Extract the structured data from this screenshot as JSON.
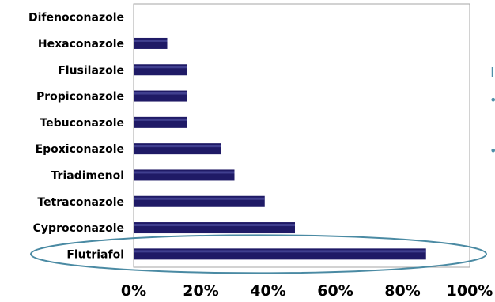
{
  "chart_data": {
    "type": "bar",
    "orientation": "horizontal",
    "categories": [
      "Difenoconazole",
      "Hexaconazole",
      "Flusilazole",
      "Propiconazole",
      "Tebuconazole",
      "Epoxiconazole",
      "Triadimenol",
      "Tetraconazole",
      "Cyproconazole",
      "Flutriafol"
    ],
    "values": [
      0,
      10,
      16,
      16,
      16,
      26,
      30,
      39,
      48,
      87
    ],
    "xlim": [
      0,
      100
    ],
    "x_ticks": [
      0,
      20,
      40,
      60,
      80,
      100
    ],
    "x_tick_labels": [
      "0%",
      "20%",
      "40%",
      "60%",
      "80%",
      "100%"
    ],
    "title": "",
    "xlabel": "",
    "ylabel": "",
    "grid": false,
    "legend": "none",
    "highlighted_category": "Flutriafol"
  },
  "colors": {
    "bar_fill": "#1f1a66",
    "bar_highlight": "#5b5fb0",
    "plot_border": "#a6a6a6",
    "highlight_ellipse": "#4a8aa3"
  },
  "side_glyphs": {
    "letter": "I",
    "bullet": "•"
  }
}
